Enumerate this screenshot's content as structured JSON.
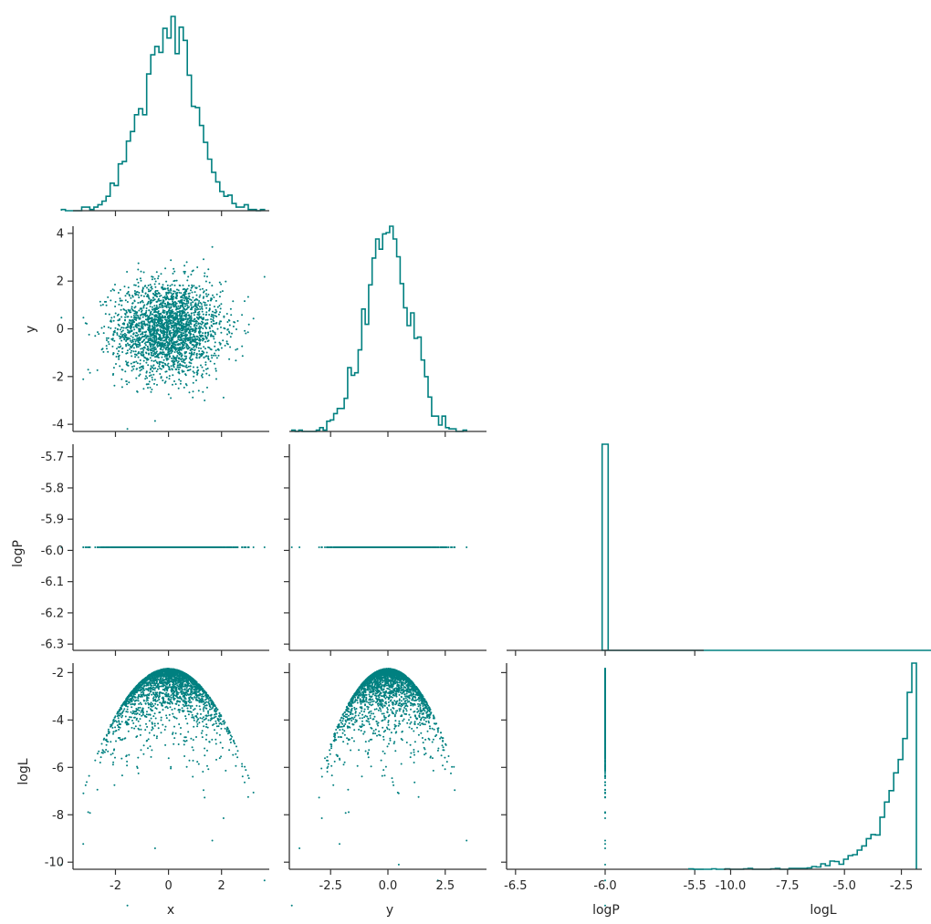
{
  "chart_data": {
    "type": "corner",
    "color": "#008080",
    "variables": [
      "x",
      "y",
      "logP",
      "logL"
    ],
    "ranges": {
      "x": [
        -3.6,
        3.8
      ],
      "y": [
        -4.3,
        4.3
      ],
      "logP": [
        -6.32,
        -5.66
      ],
      "logL": [
        -10.3,
        -1.6
      ]
    },
    "x_axis_labels": [
      "x",
      "y",
      "logP",
      "logL"
    ],
    "y_axis_labels": [
      "y",
      "logP",
      "logL"
    ],
    "ticks": {
      "x": [
        "-2",
        "0",
        "2"
      ],
      "y_bottom": [
        "-2.5",
        "0.0",
        "2.5"
      ],
      "y_left": [
        "4",
        "2",
        "0",
        "-2",
        "-4"
      ],
      "logP_bottom": [
        "-6.5",
        "-6.0",
        "-5.5"
      ],
      "logP_left": [
        "-5.7",
        "-5.8",
        "-5.9",
        "-6.0",
        "-6.1",
        "-6.2",
        "-6.3"
      ],
      "logL_bottom": [
        "-10.0",
        "-7.5",
        "-5.0",
        "-2.5"
      ],
      "logL_left": [
        "-2",
        "-4",
        "-6",
        "-8",
        "-10"
      ]
    },
    "tick_values": {
      "x": [
        -2,
        0,
        2
      ],
      "y_bottom": [
        -2.5,
        0.0,
        2.5
      ],
      "y_left": [
        4,
        2,
        0,
        -2,
        -4
      ],
      "logP_bottom": [
        -6.5,
        -6.0,
        -5.5
      ],
      "logP_left": [
        -5.7,
        -5.8,
        -5.9,
        -6.0,
        -6.1,
        -6.2,
        -6.3
      ],
      "logL_bottom": [
        -10.0,
        -7.5,
        -5.0,
        -2.5
      ],
      "logL_left": [
        -2,
        -4,
        -6,
        -8,
        -10
      ]
    },
    "logP_value": -5.99,
    "logL_max": -1.84,
    "n_samples": 2500,
    "histograms": {
      "x": {
        "bins": 50,
        "shape": "gaussian",
        "mean": 0.0,
        "std": 1.0
      },
      "y": {
        "bins": 50,
        "shape": "gaussian",
        "mean": 0.0,
        "std": 1.0
      },
      "logP": {
        "bins": 50,
        "shape": "single spike at -6.0"
      },
      "logL": {
        "bins": 50,
        "shape": "skewed, peak near -1.9"
      }
    },
    "grid": false,
    "legend": "none",
    "layout": "lower-triangle 4x4"
  }
}
